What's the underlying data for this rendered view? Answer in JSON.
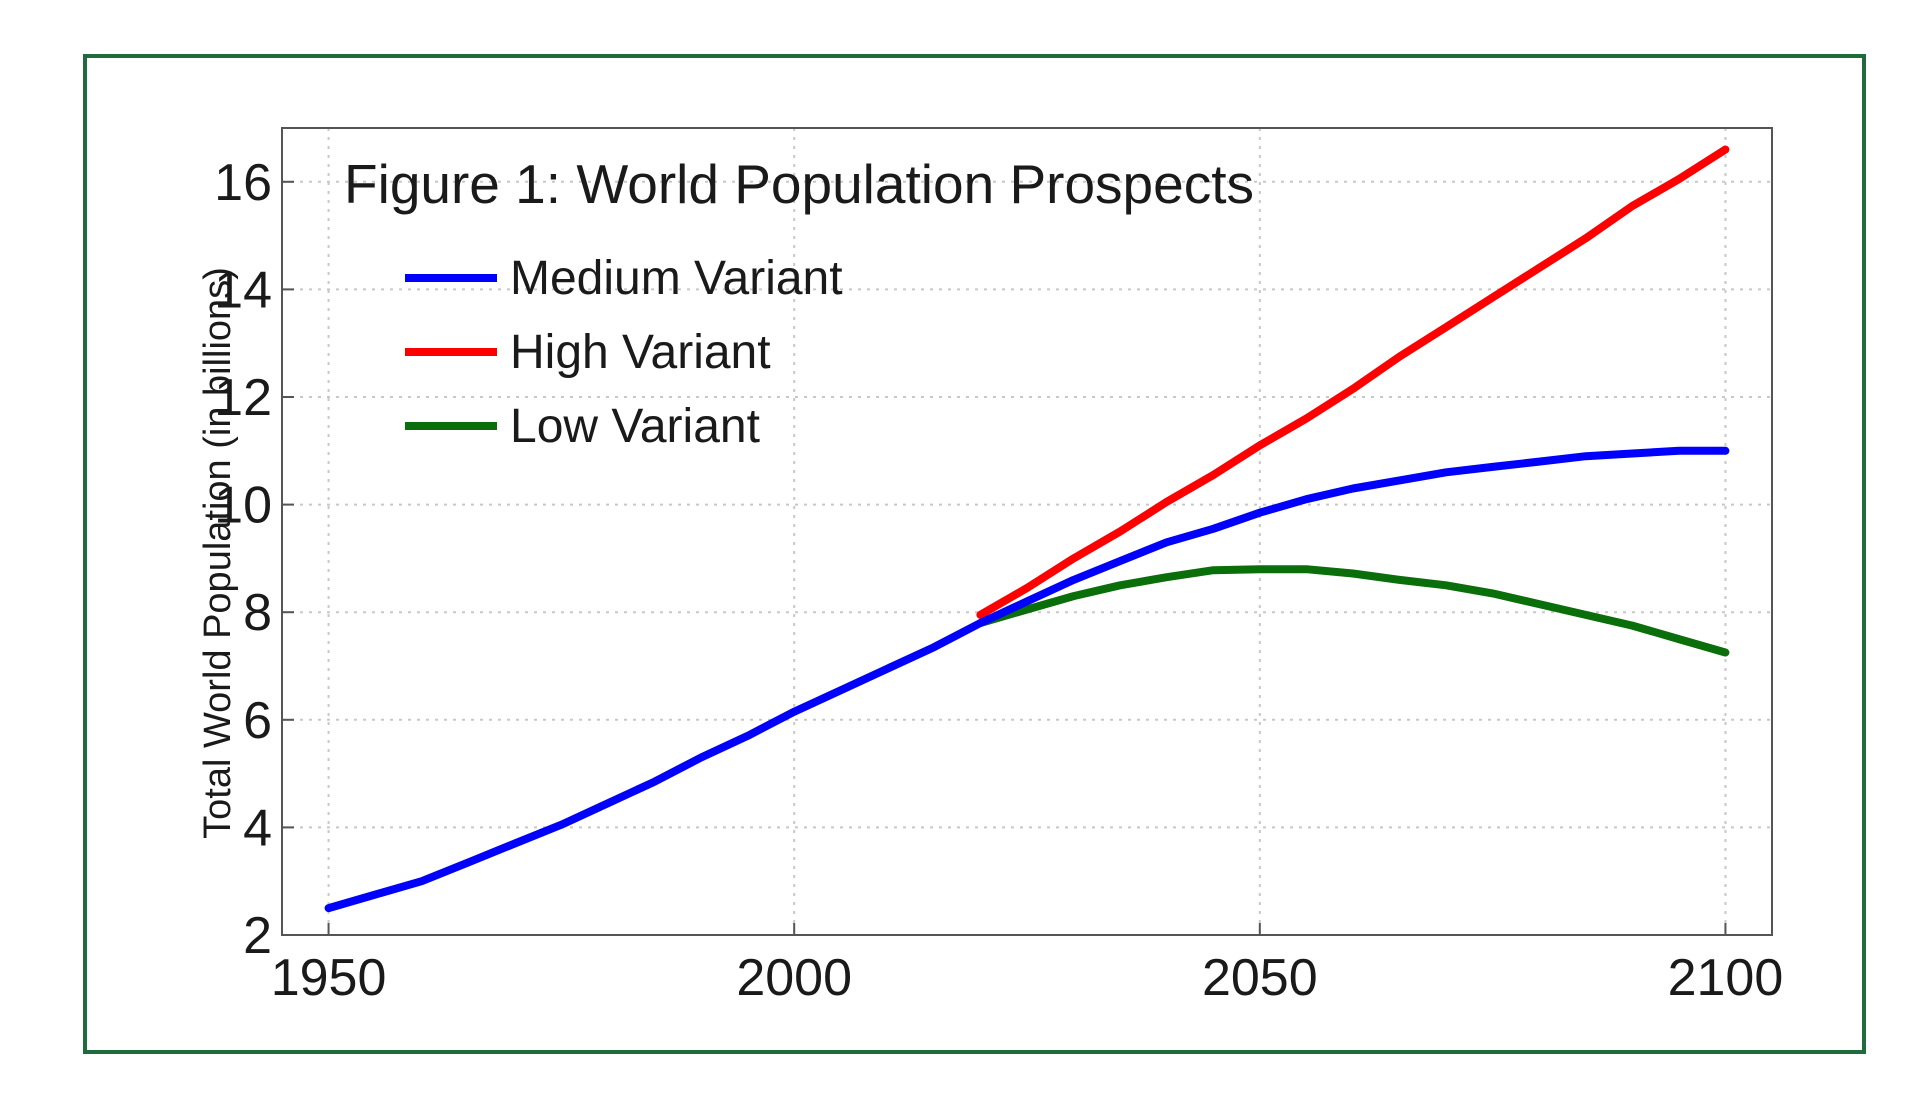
{
  "chart_data": {
    "type": "line",
    "title": "Figure 1: World Population Prospects",
    "xlabel": "",
    "ylabel": "Total World Population (in billions)",
    "xlim": [
      1945,
      2105
    ],
    "ylim": [
      2,
      17
    ],
    "x_ticks": [
      1950,
      2000,
      2050,
      2100
    ],
    "y_ticks": [
      2,
      4,
      6,
      8,
      10,
      12,
      14,
      16
    ],
    "grid": true,
    "legend_position": "top-left",
    "series": [
      {
        "name": "Medium Variant",
        "color": "#0000ff",
        "x": [
          1950,
          1955,
          1960,
          1965,
          1970,
          1975,
          1980,
          1985,
          1990,
          1995,
          2000,
          2005,
          2010,
          2015,
          2020,
          2025,
          2030,
          2035,
          2040,
          2045,
          2050,
          2055,
          2060,
          2065,
          2070,
          2075,
          2080,
          2085,
          2090,
          2095,
          2100
        ],
        "y": [
          2.5,
          2.75,
          3.0,
          3.35,
          3.7,
          4.05,
          4.45,
          4.85,
          5.3,
          5.7,
          6.15,
          6.55,
          6.95,
          7.35,
          7.8,
          8.2,
          8.6,
          8.95,
          9.3,
          9.55,
          9.85,
          10.1,
          10.3,
          10.45,
          10.6,
          10.7,
          10.8,
          10.9,
          10.95,
          11.0,
          11.0
        ]
      },
      {
        "name": "High Variant",
        "color": "#ff0000",
        "x": [
          2020,
          2025,
          2030,
          2035,
          2040,
          2045,
          2050,
          2055,
          2060,
          2065,
          2070,
          2075,
          2080,
          2085,
          2090,
          2095,
          2100
        ],
        "y": [
          7.95,
          8.45,
          9.0,
          9.5,
          10.05,
          10.55,
          11.1,
          11.6,
          12.15,
          12.75,
          13.3,
          13.85,
          14.4,
          14.95,
          15.55,
          16.05,
          16.6
        ]
      },
      {
        "name": "Low Variant",
        "color": "#0a6e0a",
        "x": [
          2020,
          2025,
          2030,
          2035,
          2040,
          2045,
          2050,
          2055,
          2060,
          2065,
          2070,
          2075,
          2080,
          2085,
          2090,
          2095,
          2100
        ],
        "y": [
          7.8,
          8.05,
          8.3,
          8.5,
          8.65,
          8.78,
          8.8,
          8.8,
          8.72,
          8.6,
          8.5,
          8.35,
          8.15,
          7.95,
          7.75,
          7.5,
          7.25
        ]
      }
    ]
  }
}
